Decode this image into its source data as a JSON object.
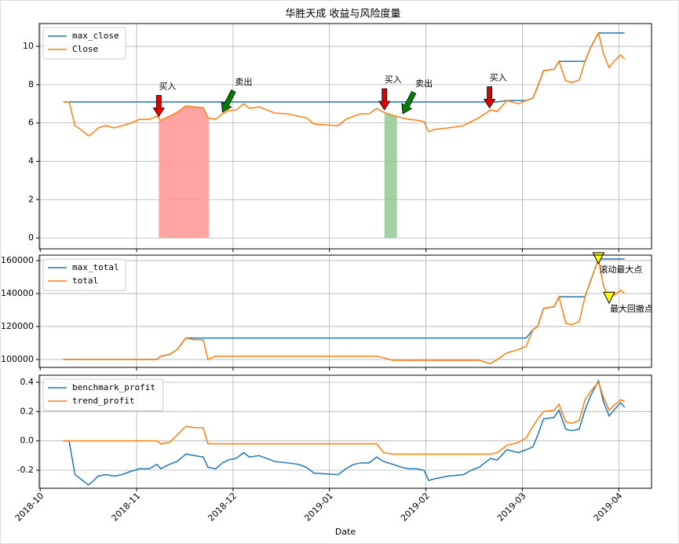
{
  "chart_data": [
    {
      "type": "line",
      "title": "华胜天成 收益与风险度量",
      "x": [
        0.24,
        0.3,
        0.36,
        0.42,
        0.5,
        0.54,
        0.6,
        0.68,
        0.77,
        0.85,
        0.93,
        1.03,
        1.13,
        1.21,
        1.25,
        1.34,
        1.42,
        1.51,
        1.6,
        1.69,
        1.74,
        1.82,
        1.89,
        1.95,
        2.03,
        2.11,
        2.17,
        2.27,
        2.35,
        2.43,
        2.56,
        2.68,
        2.76,
        2.84,
        3.09,
        3.17,
        3.25,
        3.33,
        3.41,
        3.49,
        3.56,
        3.66,
        3.75,
        3.82,
        3.9,
        3.98,
        4.03,
        4.08,
        4.23,
        4.39,
        4.47,
        4.55,
        4.67,
        4.74,
        4.84,
        4.96,
        5.04,
        5.11,
        5.16,
        5.22,
        5.33,
        5.38,
        5.45,
        5.51,
        5.59,
        5.65,
        5.71,
        5.79,
        5.84,
        5.9,
        5.95,
        6.02,
        6.06
      ],
      "series": [
        {
          "name": "max_close",
          "color": "#1f77b4",
          "values": [
            7.1,
            7.1,
            7.1,
            7.1,
            7.1,
            7.1,
            7.1,
            7.1,
            7.1,
            7.1,
            7.1,
            7.1,
            7.1,
            7.1,
            7.1,
            7.1,
            7.1,
            7.1,
            7.1,
            7.1,
            7.1,
            7.1,
            7.1,
            7.1,
            7.1,
            7.1,
            7.1,
            7.1,
            7.1,
            7.1,
            7.1,
            7.1,
            7.1,
            7.1,
            7.1,
            7.1,
            7.1,
            7.1,
            7.1,
            7.1,
            7.1,
            7.1,
            7.1,
            7.1,
            7.1,
            7.1,
            7.1,
            7.1,
            7.1,
            7.1,
            7.1,
            7.1,
            7.1,
            7.1,
            7.17,
            7.17,
            7.17,
            7.3,
            7.91,
            8.73,
            8.81,
            9.22,
            9.22,
            9.22,
            9.22,
            9.22,
            9.96,
            10.7,
            10.7,
            10.7,
            10.7,
            10.7,
            10.7
          ]
        },
        {
          "name": "Close",
          "color": "#ff7f0e",
          "values": [
            7.1,
            7.1,
            5.86,
            5.66,
            5.33,
            5.45,
            5.74,
            5.86,
            5.74,
            5.86,
            5.98,
            6.19,
            6.19,
            6.35,
            6.15,
            6.35,
            6.56,
            6.89,
            6.84,
            6.8,
            6.27,
            6.19,
            6.48,
            6.64,
            6.68,
            7.0,
            6.76,
            6.84,
            6.68,
            6.52,
            6.48,
            6.35,
            6.27,
            5.94,
            5.86,
            6.19,
            6.35,
            6.48,
            6.48,
            6.76,
            6.56,
            6.39,
            6.27,
            6.19,
            6.15,
            6.07,
            5.53,
            5.66,
            5.74,
            5.86,
            6.07,
            6.27,
            6.68,
            6.6,
            7.17,
            7.0,
            7.17,
            7.3,
            7.91,
            8.73,
            8.81,
            9.22,
            8.2,
            8.11,
            8.24,
            9.22,
            9.96,
            10.7,
            9.63,
            8.89,
            9.22,
            9.55,
            9.34
          ]
        }
      ],
      "spans": [
        {
          "x": [
            1.23,
            1.75
          ],
          "color": "#ff9999"
        },
        {
          "x": [
            3.57,
            3.7
          ],
          "color": "#99cc99"
        }
      ],
      "annotations": [
        {
          "text": "买入",
          "x": 1.23,
          "y": 6.25,
          "color": "#e00000",
          "marker": "arrow-down"
        },
        {
          "text": "卖出",
          "x": 1.89,
          "y": 6.48,
          "color": "#008000",
          "marker": "arrow-diag"
        },
        {
          "text": "买入",
          "x": 3.57,
          "y": 6.6,
          "color": "#e00000",
          "marker": "arrow-down"
        },
        {
          "text": "卖出",
          "x": 3.76,
          "y": 6.4,
          "color": "#008000",
          "marker": "arrow-diag"
        },
        {
          "text": "买入",
          "x": 4.66,
          "y": 6.7,
          "color": "#e00000",
          "marker": "arrow-down"
        }
      ],
      "xlim": [
        -0.01,
        6.34
      ],
      "xticks": [
        {
          "value": 0,
          "label": "2018-10"
        },
        {
          "value": 1,
          "label": "2018-11"
        },
        {
          "value": 2,
          "label": "2018-12"
        },
        {
          "value": 3,
          "label": "2019-01"
        },
        {
          "value": 4,
          "label": "2019-02"
        },
        {
          "value": 5,
          "label": "2019-03"
        },
        {
          "value": 6,
          "label": "2019-04"
        }
      ],
      "ylim": [
        -0.57,
        11.19
      ],
      "yticks": [
        0,
        2,
        4,
        6,
        8,
        10
      ],
      "grid": true,
      "legend": "upper left"
    },
    {
      "type": "line",
      "x": [
        0.24,
        0.3,
        0.36,
        0.42,
        0.5,
        0.54,
        0.6,
        0.68,
        0.77,
        0.85,
        0.93,
        1.03,
        1.13,
        1.21,
        1.25,
        1.34,
        1.42,
        1.51,
        1.6,
        1.69,
        1.74,
        1.82,
        1.89,
        1.95,
        2.03,
        2.11,
        2.17,
        2.27,
        2.35,
        2.43,
        2.56,
        2.68,
        2.76,
        2.84,
        3.09,
        3.17,
        3.25,
        3.33,
        3.41,
        3.49,
        3.56,
        3.66,
        3.75,
        3.82,
        3.9,
        3.98,
        4.03,
        4.08,
        4.23,
        4.39,
        4.47,
        4.55,
        4.67,
        4.74,
        4.84,
        4.96,
        5.04,
        5.11,
        5.16,
        5.22,
        5.33,
        5.38,
        5.45,
        5.51,
        5.59,
        5.65,
        5.71,
        5.79,
        5.84,
        5.9,
        5.95,
        6.02,
        6.06
      ],
      "series": [
        {
          "name": "max_total",
          "color": "#1f77b4",
          "values": [
            100000,
            100000,
            100000,
            100000,
            100000,
            100000,
            100000,
            100000,
            100000,
            100000,
            100000,
            100000,
            100000,
            100000,
            102000,
            103000,
            106000,
            113000,
            113000,
            113000,
            113000,
            113000,
            113000,
            113000,
            113000,
            113000,
            113000,
            113000,
            113000,
            113000,
            113000,
            113000,
            113000,
            113000,
            113000,
            113000,
            113000,
            113000,
            113000,
            113000,
            113000,
            113000,
            113000,
            113000,
            113000,
            113000,
            113000,
            113000,
            113000,
            113000,
            113000,
            113000,
            113000,
            113000,
            113000,
            113000,
            113000,
            118000,
            120000,
            131000,
            132000,
            138000,
            138000,
            138000,
            138000,
            138000,
            148000,
            161000,
            161000,
            161000,
            161000,
            161000,
            161000
          ]
        },
        {
          "name": "total",
          "color": "#ff7f0e",
          "values": [
            100000,
            100000,
            100000,
            100000,
            100000,
            100000,
            100000,
            100000,
            100000,
            100000,
            100000,
            100000,
            100000,
            100000,
            102000,
            103000,
            106000,
            113000,
            112000,
            112000,
            100000,
            102000,
            102000,
            102000,
            102000,
            102000,
            102000,
            102000,
            102000,
            102000,
            102000,
            102000,
            102000,
            102000,
            102000,
            102000,
            102000,
            102000,
            102000,
            102000,
            101000,
            99500,
            99500,
            99500,
            99500,
            99500,
            99500,
            99500,
            99500,
            99500,
            99500,
            99500,
            97500,
            100000,
            104000,
            106000,
            108000,
            118000,
            120000,
            131000,
            132000,
            138000,
            122000,
            121000,
            123000,
            138000,
            148000,
            161000,
            145000,
            137000,
            139000,
            142000,
            140000
          ]
        }
      ],
      "annotations": [
        {
          "text": "滚动最大点",
          "x": 5.79,
          "y": 161000,
          "color": "#ffff00",
          "marker": "triangle-down"
        },
        {
          "text": "最大回撤点",
          "x": 5.9,
          "y": 137000,
          "color": "#ffff00",
          "marker": "triangle-down"
        }
      ],
      "xlim": [
        -0.01,
        6.34
      ],
      "xticks": [
        {
          "value": 0,
          "label": "2018-10"
        },
        {
          "value": 1,
          "label": "2018-11"
        },
        {
          "value": 2,
          "label": "2018-12"
        },
        {
          "value": 3,
          "label": "2019-01"
        },
        {
          "value": 4,
          "label": "2019-02"
        },
        {
          "value": 5,
          "label": "2019-03"
        },
        {
          "value": 6,
          "label": "2019-04"
        }
      ],
      "ylim": [
        95200,
        163300
      ],
      "yticks": [
        100000,
        120000,
        140000,
        160000
      ],
      "grid": true,
      "legend": "upper left"
    },
    {
      "type": "line",
      "xlabel": "Date",
      "x": [
        0.24,
        0.3,
        0.36,
        0.42,
        0.5,
        0.54,
        0.6,
        0.68,
        0.77,
        0.85,
        0.93,
        1.03,
        1.13,
        1.21,
        1.25,
        1.34,
        1.42,
        1.51,
        1.6,
        1.69,
        1.74,
        1.82,
        1.89,
        1.95,
        2.03,
        2.11,
        2.17,
        2.27,
        2.35,
        2.43,
        2.56,
        2.68,
        2.76,
        2.84,
        3.09,
        3.17,
        3.25,
        3.33,
        3.41,
        3.49,
        3.56,
        3.66,
        3.75,
        3.82,
        3.9,
        3.98,
        4.03,
        4.08,
        4.23,
        4.39,
        4.47,
        4.55,
        4.67,
        4.74,
        4.84,
        4.96,
        5.04,
        5.11,
        5.16,
        5.22,
        5.33,
        5.38,
        5.45,
        5.51,
        5.59,
        5.65,
        5.71,
        5.79,
        5.84,
        5.9,
        5.95,
        6.02,
        6.06
      ],
      "series": [
        {
          "name": "benchmark_profit",
          "color": "#1f77b4",
          "values": [
            0,
            0,
            -0.23,
            -0.26,
            -0.3,
            -0.28,
            -0.24,
            -0.23,
            -0.24,
            -0.23,
            -0.21,
            -0.19,
            -0.19,
            -0.16,
            -0.19,
            -0.16,
            -0.14,
            -0.09,
            -0.1,
            -0.11,
            -0.18,
            -0.19,
            -0.15,
            -0.13,
            -0.12,
            -0.08,
            -0.11,
            -0.1,
            -0.12,
            -0.14,
            -0.15,
            -0.16,
            -0.18,
            -0.22,
            -0.23,
            -0.19,
            -0.16,
            -0.15,
            -0.15,
            -0.11,
            -0.14,
            -0.16,
            -0.18,
            -0.19,
            -0.19,
            -0.2,
            -0.27,
            -0.26,
            -0.24,
            -0.23,
            -0.2,
            -0.18,
            -0.12,
            -0.13,
            -0.06,
            -0.08,
            -0.06,
            -0.04,
            0.04,
            0.15,
            0.16,
            0.21,
            0.08,
            0.07,
            0.08,
            0.21,
            0.31,
            0.41,
            0.27,
            0.17,
            0.21,
            0.26,
            0.23
          ]
        },
        {
          "name": "trend_profit",
          "color": "#ff7f0e",
          "values": [
            0,
            0,
            0,
            0,
            0,
            0,
            0,
            0,
            0,
            0,
            0,
            0,
            0,
            0,
            -0.02,
            -0.01,
            0.04,
            0.1,
            0.09,
            0.09,
            -0.02,
            -0.02,
            -0.02,
            -0.02,
            -0.02,
            -0.02,
            -0.02,
            -0.02,
            -0.02,
            -0.02,
            -0.02,
            -0.02,
            -0.02,
            -0.02,
            -0.02,
            -0.02,
            -0.02,
            -0.02,
            -0.02,
            -0.02,
            -0.08,
            -0.09,
            -0.09,
            -0.09,
            -0.09,
            -0.09,
            -0.09,
            -0.09,
            -0.09,
            -0.09,
            -0.09,
            -0.09,
            -0.09,
            -0.08,
            -0.03,
            -0.01,
            0.02,
            0.1,
            0.15,
            0.2,
            0.21,
            0.25,
            0.13,
            0.12,
            0.14,
            0.28,
            0.34,
            0.4,
            0.3,
            0.21,
            0.24,
            0.28,
            0.27
          ]
        }
      ],
      "xlim": [
        -0.01,
        6.34
      ],
      "xticks": [
        {
          "value": 0,
          "label": "2018-10"
        },
        {
          "value": 1,
          "label": "2018-11"
        },
        {
          "value": 2,
          "label": "2018-12"
        },
        {
          "value": 3,
          "label": "2019-01"
        },
        {
          "value": 4,
          "label": "2019-02"
        },
        {
          "value": 5,
          "label": "2019-03"
        },
        {
          "value": 6,
          "label": "2019-04"
        }
      ],
      "ylim": [
        -0.323,
        0.448
      ],
      "yticks": [
        -0.2,
        {
          "value": 0,
          "label": "0.0"
        },
        0.2,
        0.4
      ],
      "grid": true,
      "legend": "upper left"
    }
  ]
}
